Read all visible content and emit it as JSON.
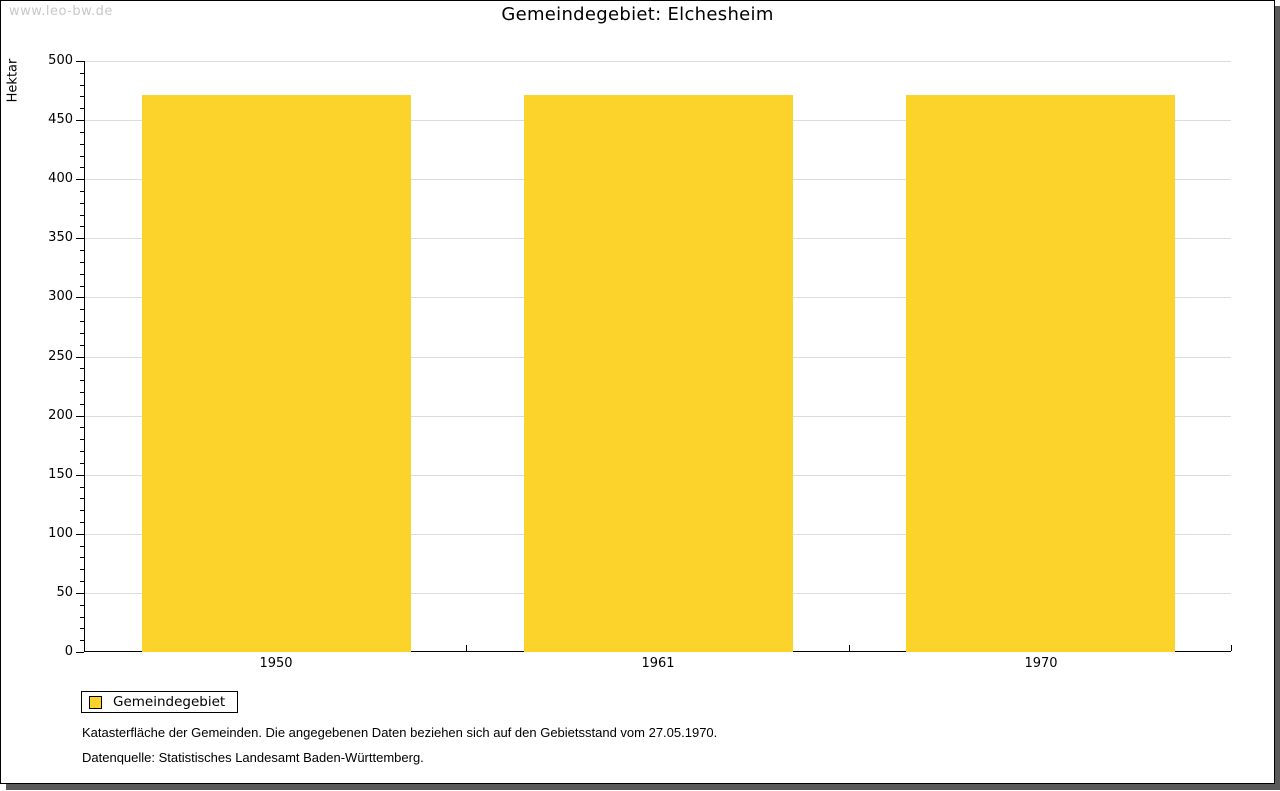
{
  "watermark": "www.leo-bw.de",
  "header": {
    "title": "Gemeindegebiet: Elchesheim"
  },
  "chart_data": {
    "type": "bar",
    "title": "Gemeindegebiet: Elchesheim",
    "categories": [
      "1950",
      "1961",
      "1970"
    ],
    "series": [
      {
        "name": "Gemeindegebiet",
        "values": [
          471,
          471,
          471
        ],
        "color": "#FCD32B"
      }
    ],
    "xlabel": "",
    "ylabel": "Hektar",
    "ylim": [
      0,
      500
    ],
    "ytick_major": 50,
    "ytick_minor": 10,
    "grid": true,
    "grid_color": "#DCDCDC",
    "legend_position": "bottom-left"
  },
  "legend": {
    "items": [
      {
        "label": "Gemeindegebiet",
        "color": "#FCD32B"
      }
    ]
  },
  "notes": {
    "line1": "Katasterfläche der Gemeinden. Die angegebenen Daten beziehen sich auf den Gebietsstand vom 27.05.1970.",
    "line2": "Datenquelle: Statistisches Landesamt Baden-Württemberg."
  },
  "colors": {
    "shadow": "#5A5A5A",
    "watermark": "#C8C8C8",
    "axis": "#000000"
  }
}
